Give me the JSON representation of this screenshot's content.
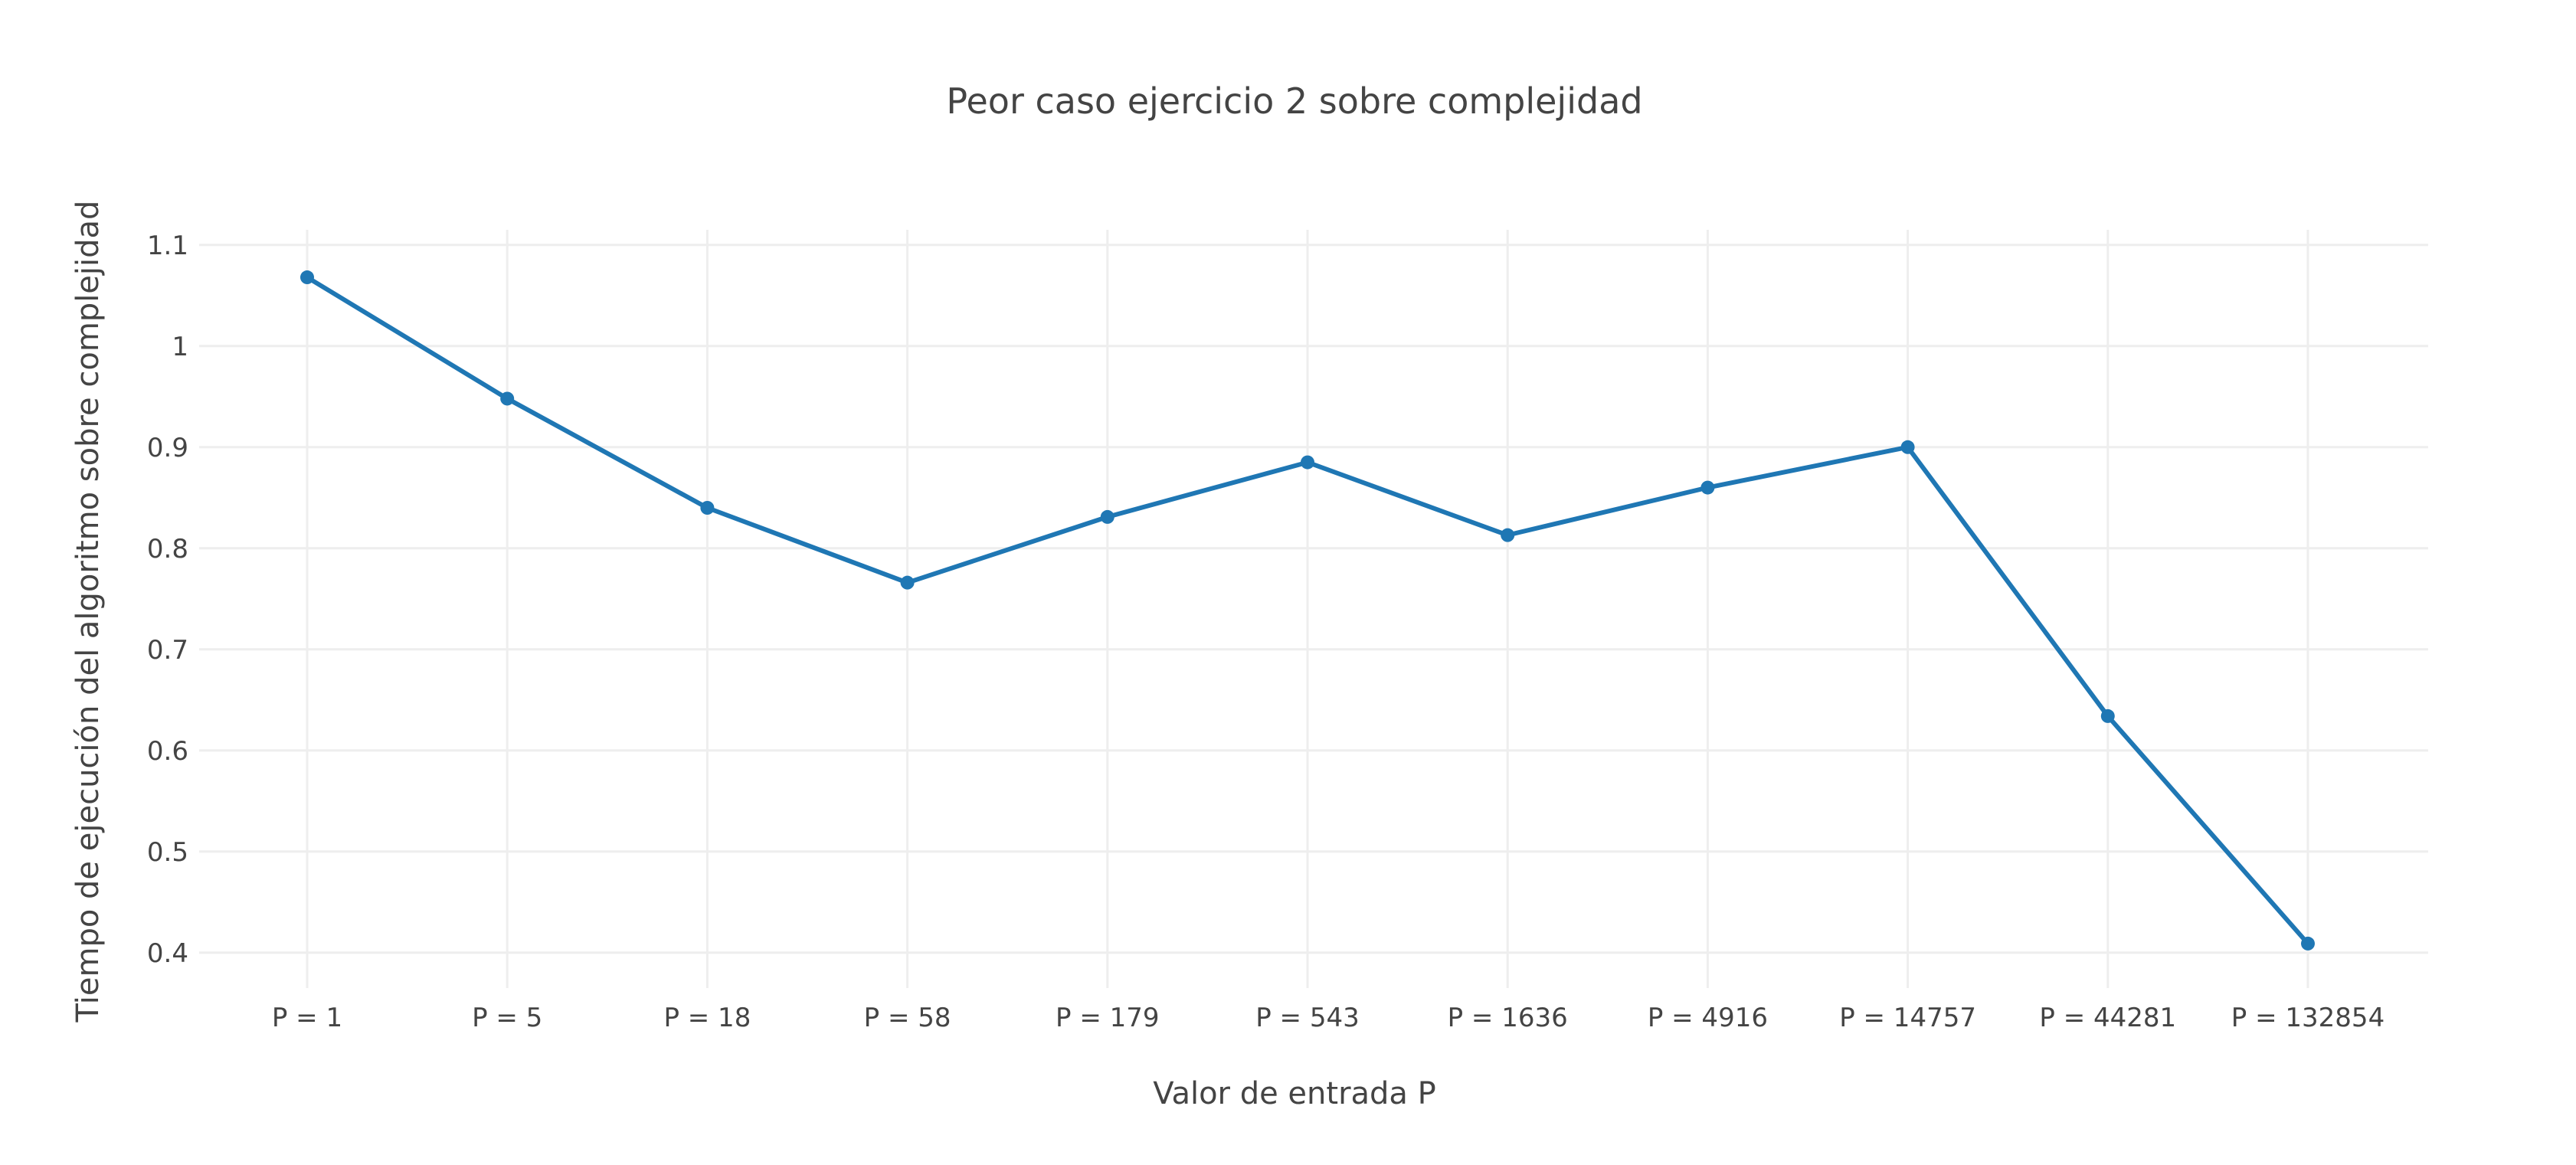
{
  "chart_data": {
    "type": "line",
    "title": "Peor caso ejercicio 2 sobre complejidad",
    "xlabel": "Valor de entrada P",
    "ylabel": "Tiempo de ejecución del algoritmo sobre complejidad",
    "categories": [
      "P = 1",
      "P = 5",
      "P = 18",
      "P = 58",
      "P = 179",
      "P = 543",
      "P = 1636",
      "P = 4916",
      "P = 14757",
      "P = 44281",
      "P = 132854"
    ],
    "series": [
      {
        "values": [
          1.068,
          0.948,
          0.84,
          0.766,
          0.831,
          0.885,
          0.813,
          0.86,
          0.9,
          0.634,
          0.409
        ],
        "color": "#1f77b4"
      }
    ],
    "ylim": [
      0.365,
      1.115
    ],
    "yticks": [
      0.4,
      0.5,
      0.6,
      0.7,
      0.8,
      0.9,
      1,
      1.1
    ],
    "ytick_labels": [
      "0.4",
      "0.5",
      "0.6",
      "0.7",
      "0.8",
      "0.9",
      "1",
      "1.1"
    ],
    "grid": true,
    "legend": "none",
    "markers": true
  }
}
